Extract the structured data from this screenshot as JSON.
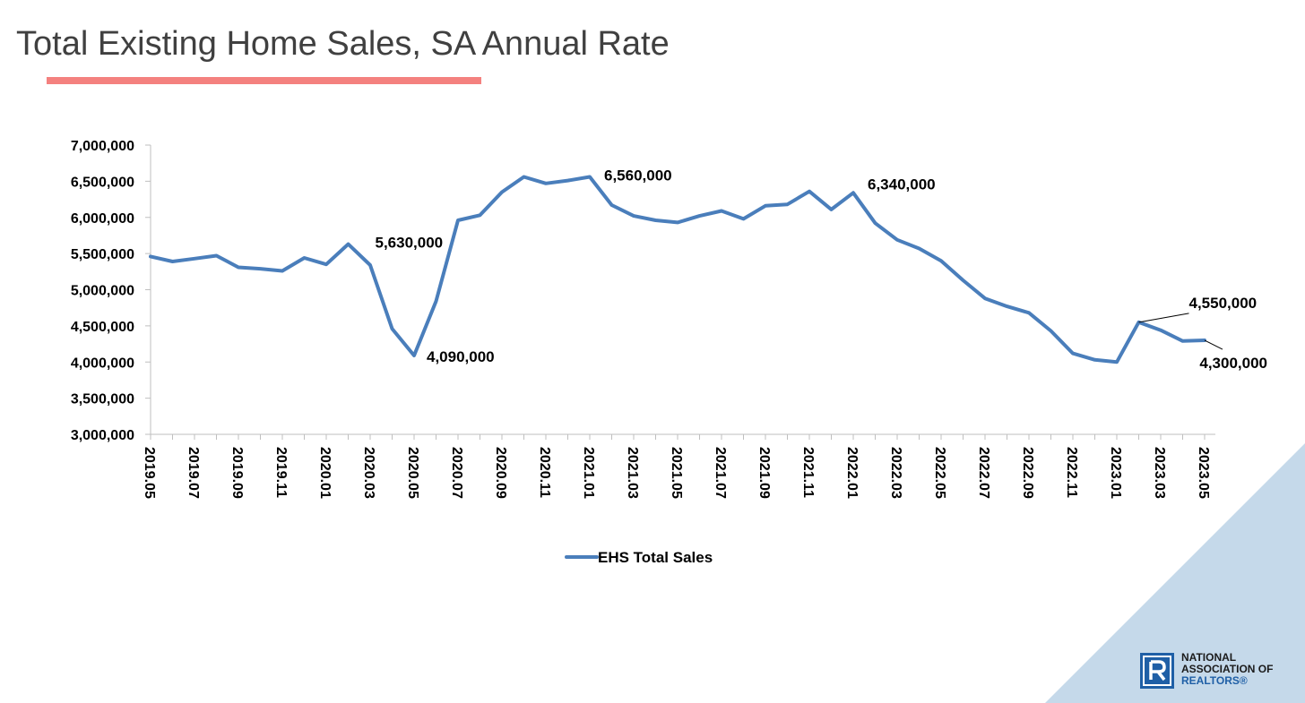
{
  "slide": {
    "title": "Total Existing Home Sales, SA Annual Rate",
    "accent_color": "#f4817f"
  },
  "logo": {
    "line1": "NATIONAL",
    "line2": "ASSOCIATION OF",
    "line3": "REALTORS®",
    "color": "#1f5fa6"
  },
  "chart_data": {
    "type": "line",
    "title": "",
    "xlabel": "",
    "ylabel": "",
    "ylim": [
      3000000,
      7000000
    ],
    "yticks": [
      3000000,
      3500000,
      4000000,
      4500000,
      5000000,
      5500000,
      6000000,
      6500000,
      7000000
    ],
    "ytick_labels": [
      "3,000,000",
      "3,500,000",
      "4,000,000",
      "4,500,000",
      "5,000,000",
      "5,500,000",
      "6,000,000",
      "6,500,000",
      "7,000,000"
    ],
    "x": [
      "2019.05",
      "2019.06",
      "2019.07",
      "2019.08",
      "2019.09",
      "2019.10",
      "2019.11",
      "2019.12",
      "2020.01",
      "2020.02",
      "2020.03",
      "2020.04",
      "2020.05",
      "2020.06",
      "2020.07",
      "2020.08",
      "2020.09",
      "2020.10",
      "2020.11",
      "2020.12",
      "2021.01",
      "2021.02",
      "2021.03",
      "2021.04",
      "2021.05",
      "2021.06",
      "2021.07",
      "2021.08",
      "2021.09",
      "2021.10",
      "2021.11",
      "2021.12",
      "2022.01",
      "2022.02",
      "2022.03",
      "2022.04",
      "2022.05",
      "2022.06",
      "2022.07",
      "2022.08",
      "2022.09",
      "2022.10",
      "2022.11",
      "2022.12",
      "2023.01",
      "2023.02",
      "2023.03",
      "2023.04",
      "2023.05"
    ],
    "xtick_labels": [
      "2019.05",
      "2019.07",
      "2019.09",
      "2019.11",
      "2020.01",
      "2020.03",
      "2020.05",
      "2020.07",
      "2020.09",
      "2020.11",
      "2021.01",
      "2021.03",
      "2021.05",
      "2021.07",
      "2021.09",
      "2021.11",
      "2022.01",
      "2022.03",
      "2022.05",
      "2022.07",
      "2022.09",
      "2022.11",
      "2023.01",
      "2023.03",
      "2023.05"
    ],
    "series": [
      {
        "name": "EHS Total Sales",
        "color": "#4a7ebb",
        "values": [
          5460000,
          5390000,
          5430000,
          5470000,
          5310000,
          5290000,
          5260000,
          5440000,
          5350000,
          5630000,
          5340000,
          4460000,
          4090000,
          4840000,
          5960000,
          6030000,
          6350000,
          6560000,
          6470000,
          6510000,
          6560000,
          6170000,
          6020000,
          5960000,
          5930000,
          6020000,
          6090000,
          5980000,
          6160000,
          6180000,
          6360000,
          6110000,
          6340000,
          5920000,
          5690000,
          5570000,
          5400000,
          5130000,
          4880000,
          4770000,
          4680000,
          4430000,
          4120000,
          4030000,
          4000000,
          4550000,
          4440000,
          4290000,
          4300000
        ]
      }
    ],
    "annotations": [
      {
        "x": "2020.02",
        "label": "5,630,000"
      },
      {
        "x": "2020.05",
        "label": "4,090,000"
      },
      {
        "x": "2021.01",
        "label": "6,560,000"
      },
      {
        "x": "2022.01",
        "label": "6,340,000"
      },
      {
        "x": "2023.02",
        "label": "4,550,000"
      },
      {
        "x": "2023.05",
        "label": "4,300,000"
      }
    ],
    "legend_position": "bottom",
    "grid": false
  }
}
